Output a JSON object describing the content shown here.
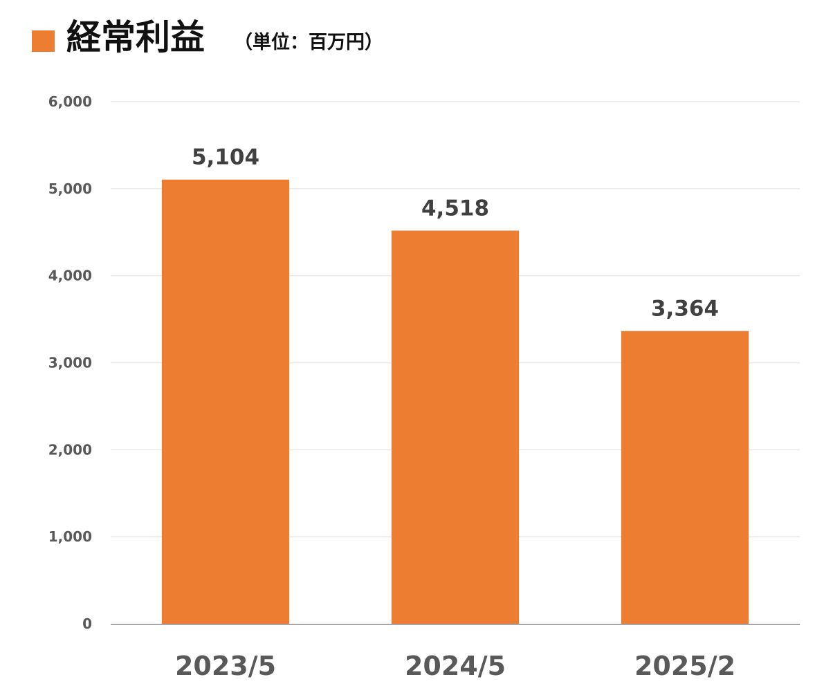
{
  "header": {
    "title": "経常利益",
    "unit": "（単位：百万円）",
    "marker_color": "#ED7D31"
  },
  "chart_data": {
    "type": "bar",
    "categories": [
      "2023/5",
      "2024/5",
      "2025/2"
    ],
    "values": [
      5104,
      4518,
      3364
    ],
    "value_labels": [
      "5,104",
      "4,518",
      "3,364"
    ],
    "ylim": [
      0,
      6000
    ],
    "yticks": [
      0,
      1000,
      2000,
      3000,
      4000,
      5000,
      6000
    ],
    "ytick_labels": [
      "0",
      "1,000",
      "2,000",
      "3,000",
      "4,000",
      "5,000",
      "6,000"
    ],
    "xlabel": "",
    "ylabel": "",
    "grid": true,
    "legend": "none",
    "bar_color": "#ED7D31",
    "gridline_color": "#E8E8E8",
    "axis_color": "#A6A6A6"
  }
}
